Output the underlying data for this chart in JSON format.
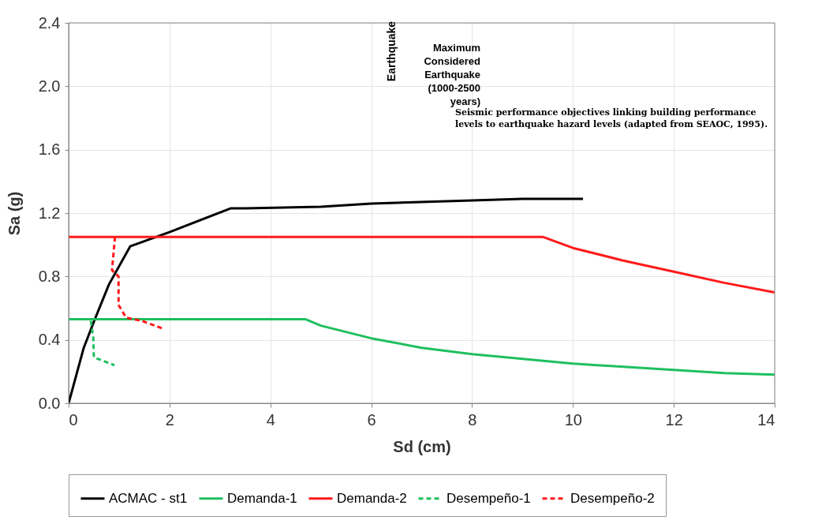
{
  "chart_data": {
    "type": "line",
    "xlabel": "Sd (cm)",
    "ylabel": "Sa (g)",
    "xlim": [
      0,
      14
    ],
    "xticks": [
      0,
      2,
      4,
      6,
      8,
      10,
      12,
      14
    ],
    "ylim": [
      0,
      2.4
    ],
    "yticks": [
      {
        "value": 0,
        "label": "0.0"
      },
      {
        "value": 0.4,
        "label": "0.4"
      },
      {
        "value": 0.8,
        "label": "0.8"
      },
      {
        "value": 1.2,
        "label": "1.2"
      },
      {
        "value": 1.6,
        "label": "1.6"
      },
      {
        "value": 2.0,
        "label": "2.0"
      },
      {
        "value": 2.4,
        "label": "2.4"
      }
    ],
    "grid": true,
    "legend": "bottom",
    "series": [
      {
        "name": "ACMAC - st1",
        "color": "#000000",
        "line_style": "solid",
        "x": [
          0,
          0.3,
          0.52,
          0.8,
          1.22,
          2,
          3.22,
          3.5,
          5,
          6,
          8,
          9,
          10.2
        ],
        "values": [
          0,
          0.35,
          0.53,
          0.75,
          0.99,
          1.08,
          1.23,
          1.23,
          1.24,
          1.26,
          1.28,
          1.29,
          1.29
        ]
      },
      {
        "name": "Demanda-1",
        "color": "#1fbf5f",
        "line_style": "solid",
        "x": [
          0,
          4.7,
          5,
          6,
          7,
          8,
          9,
          10,
          11,
          12,
          13,
          14
        ],
        "values": [
          0.53,
          0.53,
          0.49,
          0.41,
          0.35,
          0.31,
          0.28,
          0.25,
          0.23,
          0.21,
          0.19,
          0.18
        ]
      },
      {
        "name": "Demanda-2",
        "color": "#ff1a1a",
        "line_style": "solid",
        "x": [
          0,
          9.4,
          10,
          11,
          12,
          13,
          14
        ],
        "values": [
          1.05,
          1.05,
          0.98,
          0.9,
          0.83,
          0.76,
          0.7
        ]
      },
      {
        "name": "Desempeño-1",
        "color": "#1fbf5f",
        "line_style": "dashed",
        "x": [
          0.44,
          0.49,
          0.5,
          0.91
        ],
        "values": [
          0.52,
          0.41,
          0.29,
          0.24
        ]
      },
      {
        "name": "Desempeño-2",
        "color": "#ff1a1a",
        "line_style": "dashed",
        "x": [
          0.92,
          0.86,
          0.99,
          0.99,
          1.14,
          1.45,
          1.88
        ],
        "values": [
          1.05,
          0.84,
          0.8,
          0.62,
          0.54,
          0.52,
          0.47
        ]
      }
    ],
    "annotations": [
      "Earthquake",
      "Maximum\nConsidered\nEarthquake\n(1000-2500\nyears)",
      "Seismic performance objectives linking building performance\nlevels to earthquake hazard levels (adapted from SEAOC, 1995)."
    ]
  }
}
